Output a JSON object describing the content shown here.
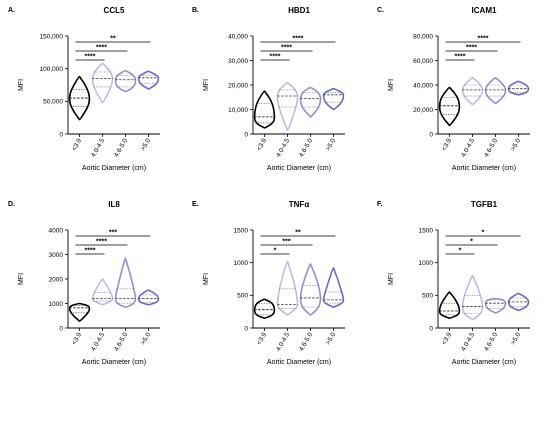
{
  "chart_data": [
    {
      "type": "violin",
      "panel": "A.",
      "title": "CCL5",
      "xlabel": "Aortic Diameter (cm)",
      "ylabel": "MFI",
      "categories": [
        "<3.9",
        "4.0-4.5",
        "4.6-5.0",
        ">5.0"
      ],
      "yticks": [
        "0",
        "50,000",
        "100,000",
        "150,000"
      ],
      "ylim": [
        0,
        150000
      ],
      "series": [
        {
          "category": "<3.9",
          "min": 22000,
          "q1": 42000,
          "median": 55000,
          "q3": 68000,
          "max": 88000,
          "color": "#000000"
        },
        {
          "category": "4.0-4.5",
          "min": 48000,
          "q1": 72000,
          "median": 85000,
          "q3": 95000,
          "max": 108000,
          "color": "#bcbce6"
        },
        {
          "category": "4.6-5.0",
          "min": 65000,
          "q1": 72000,
          "median": 83000,
          "q3": 90000,
          "max": 97000,
          "color": "#9090d8"
        },
        {
          "category": ">5.0",
          "min": 69000,
          "q1": 77000,
          "median": 86000,
          "q3": 90000,
          "max": 96000,
          "color": "#6a6ad0"
        }
      ],
      "significance": [
        {
          "from": "<3.9",
          "to": "4.0-4.5",
          "label": "****"
        },
        {
          "from": "<3.9",
          "to": "4.6-5.0",
          "label": "****"
        },
        {
          "from": "<3.9",
          "to": ">5.0",
          "label": "**"
        }
      ],
      "grid": false
    },
    {
      "type": "violin",
      "panel": "B.",
      "title": "HBD1",
      "xlabel": "Aortic Diameter (cm)",
      "ylabel": "MFI",
      "categories": [
        "<3.9",
        "4.0-4.5",
        "4.6-5.0",
        ">5.0"
      ],
      "yticks": [
        "0",
        "10,000",
        "20,000",
        "30,000",
        "40,000"
      ],
      "ylim": [
        0,
        40000
      ],
      "series": [
        {
          "category": "<3.9",
          "min": 2500,
          "q1": 4500,
          "median": 7000,
          "q3": 12500,
          "max": 17500,
          "color": "#000000"
        },
        {
          "category": "4.0-4.5",
          "min": 1500,
          "q1": 11000,
          "median": 15500,
          "q3": 18000,
          "max": 21000,
          "color": "#bcbce6"
        },
        {
          "category": "4.6-5.0",
          "min": 7000,
          "q1": 11000,
          "median": 14500,
          "q3": 17000,
          "max": 19000,
          "color": "#9090d8"
        },
        {
          "category": ">5.0",
          "min": 10000,
          "q1": 13000,
          "median": 16000,
          "q3": 17000,
          "max": 18500,
          "color": "#6a6ad0"
        }
      ],
      "significance": [
        {
          "from": "<3.9",
          "to": "4.0-4.5",
          "label": "****"
        },
        {
          "from": "<3.9",
          "to": "4.6-5.0",
          "label": "****"
        },
        {
          "from": "<3.9",
          "to": ">5.0",
          "label": "****"
        }
      ],
      "grid": false
    },
    {
      "type": "violin",
      "panel": "C.",
      "title": "ICAM1",
      "xlabel": "Aortic Diameter (cm)",
      "ylabel": "MFI",
      "categories": [
        "<3.9",
        "4.0-4.5",
        "4.6-5.0",
        ">5.0"
      ],
      "yticks": [
        "0",
        "20,000",
        "40,000",
        "60,000",
        "80,000"
      ],
      "ylim": [
        0,
        80000
      ],
      "series": [
        {
          "category": "<3.9",
          "min": 7000,
          "q1": 16000,
          "median": 23000,
          "q3": 30000,
          "max": 38000,
          "color": "#000000"
        },
        {
          "category": "4.0-4.5",
          "min": 24000,
          "q1": 31000,
          "median": 36000,
          "q3": 40000,
          "max": 46000,
          "color": "#bcbce6"
        },
        {
          "category": "4.6-5.0",
          "min": 25000,
          "q1": 31000,
          "median": 36000,
          "q3": 40000,
          "max": 46000,
          "color": "#9090d8"
        },
        {
          "category": ">5.0",
          "min": 32000,
          "q1": 34000,
          "median": 37000,
          "q3": 40000,
          "max": 43000,
          "color": "#6a6ad0"
        }
      ],
      "significance": [
        {
          "from": "<3.9",
          "to": "4.0-4.5",
          "label": "****"
        },
        {
          "from": "<3.9",
          "to": "4.6-5.0",
          "label": "****"
        },
        {
          "from": "<3.9",
          "to": ">5.0",
          "label": "****"
        }
      ],
      "grid": false
    },
    {
      "type": "violin",
      "panel": "D.",
      "title": "IL8",
      "xlabel": "Aortic Diameter (cm)",
      "ylabel": "MFI",
      "categories": [
        "<3.9",
        "4.0-4.5",
        "4.6-5.0",
        ">5.0"
      ],
      "yticks": [
        "0",
        "1000",
        "2000",
        "3000",
        "4000"
      ],
      "ylim": [
        0,
        4000
      ],
      "series": [
        {
          "category": "<3.9",
          "min": 280,
          "q1": 620,
          "median": 820,
          "q3": 920,
          "max": 1000,
          "color": "#000000"
        },
        {
          "category": "4.0-4.5",
          "min": 950,
          "q1": 1100,
          "median": 1200,
          "q3": 1450,
          "max": 2000,
          "color": "#bcbce6"
        },
        {
          "category": "4.6-5.0",
          "min": 850,
          "q1": 1000,
          "median": 1200,
          "q3": 1600,
          "max": 2850,
          "color": "#9090d8"
        },
        {
          "category": ">5.0",
          "min": 950,
          "q1": 1050,
          "median": 1200,
          "q3": 1350,
          "max": 1550,
          "color": "#6a6ad0"
        }
      ],
      "significance": [
        {
          "from": "<3.9",
          "to": "4.0-4.5",
          "label": "****"
        },
        {
          "from": "<3.9",
          "to": "4.6-5.0",
          "label": "****"
        },
        {
          "from": "<3.9",
          "to": ">5.0",
          "label": "***"
        }
      ],
      "grid": false
    },
    {
      "type": "violin",
      "panel": "E.",
      "title": "TNFα",
      "xlabel": "Aortic Diameter (cm)",
      "ylabel": "MFI",
      "categories": [
        "<3.9",
        "4.0-4.5",
        "4.6-5.0",
        ">5.0"
      ],
      "yticks": [
        "0",
        "500",
        "1000",
        "1500"
      ],
      "ylim": [
        0,
        1500
      ],
      "series": [
        {
          "category": "<3.9",
          "min": 150,
          "q1": 200,
          "median": 280,
          "q3": 380,
          "max": 440,
          "color": "#000000"
        },
        {
          "category": "4.0-4.5",
          "min": 200,
          "q1": 300,
          "median": 360,
          "q3": 600,
          "max": 1020,
          "color": "#bcbce6"
        },
        {
          "category": "4.6-5.0",
          "min": 200,
          "q1": 320,
          "median": 460,
          "q3": 650,
          "max": 980,
          "color": "#9090d8"
        },
        {
          "category": ">5.0",
          "min": 320,
          "q1": 380,
          "median": 430,
          "q3": 550,
          "max": 920,
          "color": "#6a6ad0"
        }
      ],
      "significance": [
        {
          "from": "<3.9",
          "to": "4.0-4.5",
          "label": "*"
        },
        {
          "from": "<3.9",
          "to": "4.6-5.0",
          "label": "***"
        },
        {
          "from": "<3.9",
          "to": ">5.0",
          "label": "**"
        }
      ],
      "grid": false
    },
    {
      "type": "violin",
      "panel": "F.",
      "title": "TGFB1",
      "xlabel": "Aortic Diameter (cm)",
      "ylabel": "MFI",
      "categories": [
        "<3.9",
        "4.0-4.5",
        "4.6-5.0",
        ">5.0"
      ],
      "yticks": [
        "0",
        "500",
        "1000",
        "1500"
      ],
      "ylim": [
        0,
        1500
      ],
      "series": [
        {
          "category": "<3.9",
          "min": 150,
          "q1": 200,
          "median": 260,
          "q3": 380,
          "max": 550,
          "color": "#000000"
        },
        {
          "category": "4.0-4.5",
          "min": 130,
          "q1": 220,
          "median": 330,
          "q3": 500,
          "max": 800,
          "color": "#bcbce6"
        },
        {
          "category": "4.6-5.0",
          "min": 230,
          "q1": 300,
          "median": 380,
          "q3": 430,
          "max": 450,
          "color": "#9090d8"
        },
        {
          "category": ">5.0",
          "min": 270,
          "q1": 330,
          "median": 400,
          "q3": 460,
          "max": 530,
          "color": "#6a6ad0"
        }
      ],
      "significance": [
        {
          "from": "<3.9",
          "to": "4.0-4.5",
          "label": "*"
        },
        {
          "from": "<3.9",
          "to": "4.6-5.0",
          "label": "*"
        },
        {
          "from": "<3.9",
          "to": ">5.0",
          "label": "*"
        }
      ],
      "grid": false
    }
  ]
}
